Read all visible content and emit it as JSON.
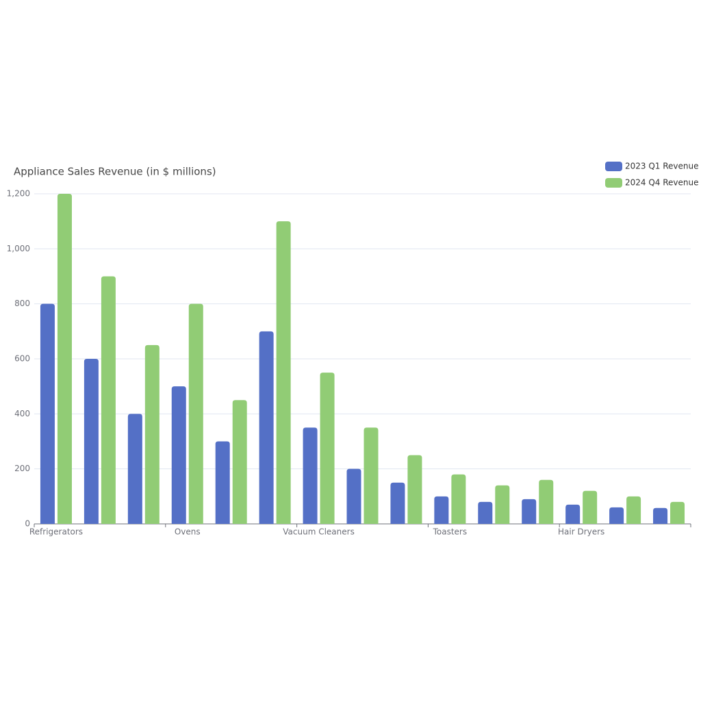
{
  "chart_data": {
    "type": "bar",
    "title": "Appliance Sales Revenue (in $ millions)",
    "categories": [
      "Refrigerators",
      null,
      null,
      "Ovens",
      null,
      null,
      "Vacuum Cleaners",
      null,
      null,
      "Toasters",
      null,
      null,
      "Hair Dryers",
      null,
      null
    ],
    "series": [
      {
        "name": "2023 Q1 Revenue",
        "color": "#5470c6",
        "values": [
          800,
          600,
          400,
          500,
          300,
          700,
          350,
          200,
          150,
          100,
          80,
          90,
          70,
          60,
          58
        ]
      },
      {
        "name": "2024 Q4 Revenue",
        "color": "#91cc75",
        "values": [
          1200,
          900,
          650,
          800,
          450,
          1100,
          550,
          350,
          250,
          180,
          140,
          160,
          120,
          100,
          80
        ]
      }
    ],
    "ylim": [
      0,
      1200
    ],
    "yticks": [
      0,
      200,
      400,
      600,
      800,
      {
        "value": 1000,
        "label": "1,000"
      },
      {
        "value": 1200,
        "label": "1,200"
      }
    ],
    "grid": true,
    "legend": "top-right"
  }
}
